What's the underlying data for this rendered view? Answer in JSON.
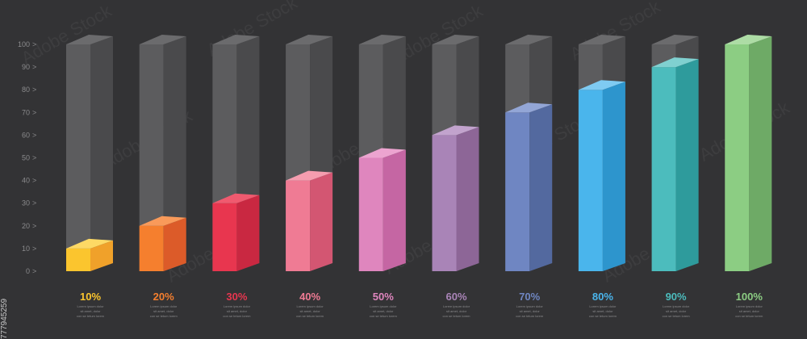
{
  "chart_data": {
    "type": "bar",
    "title": "",
    "xlabel": "",
    "ylabel": "",
    "ylim": [
      0,
      100
    ],
    "y_ticks": [
      "0",
      "10",
      "20",
      "30",
      "40",
      "50",
      "60",
      "70",
      "80",
      "90",
      "100"
    ],
    "tick_arrow": ">",
    "grid": false,
    "categories": [
      "10%",
      "20%",
      "30%",
      "40%",
      "50%",
      "60%",
      "70%",
      "80%",
      "90%",
      "100%"
    ],
    "values": [
      10,
      20,
      30,
      40,
      50,
      60,
      70,
      80,
      90,
      100
    ],
    "bar_colors": {
      "front": [
        "#fbc52e",
        "#f57f2e",
        "#e8364f",
        "#ef7b94",
        "#df86be",
        "#a984b7",
        "#6f86c2",
        "#4ab5ec",
        "#4cbcbd",
        "#8ccd83"
      ],
      "side": [
        "#f0a12a",
        "#dc5b29",
        "#c92841",
        "#d35672",
        "#c566a3",
        "#8d6697",
        "#53699f",
        "#2d95cd",
        "#2e9b9c",
        "#6eaa66"
      ],
      "top": [
        "#fdd965",
        "#f99a5a",
        "#f05a6f",
        "#f59daf",
        "#eca4d0",
        "#c2a3cd",
        "#93a6d6",
        "#7fcbf2",
        "#80d0d0",
        "#addca5"
      ]
    },
    "label_subtext": [
      "Lorem ipsum dolor",
      "sit amet, dolor",
      "con se tetum lorem"
    ]
  },
  "side_id": "777945259",
  "watermark": "Adobe Stock"
}
